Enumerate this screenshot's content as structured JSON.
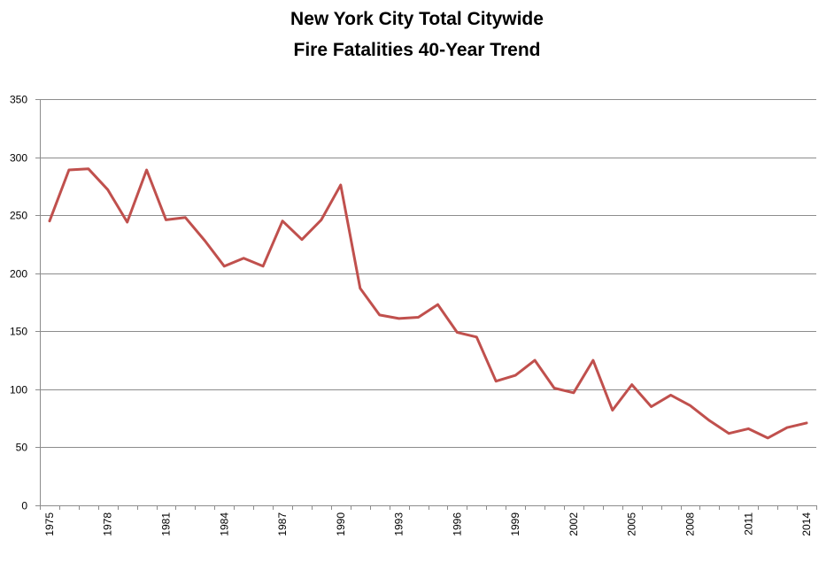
{
  "chart_data": {
    "type": "line",
    "title_line1": "New York City Total Citywide",
    "title_line2": "Fire Fatalities 40-Year Trend",
    "xlabel": "",
    "ylabel": "",
    "ylim": [
      0,
      350
    ],
    "yticks": [
      0,
      50,
      100,
      150,
      200,
      250,
      300,
      350
    ],
    "grid": true,
    "line_color": "#c0504d",
    "grid_color": "#8c8c8c",
    "x": [
      1975,
      1976,
      1977,
      1978,
      1979,
      1980,
      1981,
      1982,
      1983,
      1984,
      1985,
      1986,
      1987,
      1988,
      1989,
      1990,
      1991,
      1992,
      1993,
      1994,
      1995,
      1996,
      1997,
      1998,
      1999,
      2000,
      2001,
      2002,
      2003,
      2004,
      2005,
      2006,
      2007,
      2008,
      2009,
      2010,
      2011,
      2012,
      2013,
      2014
    ],
    "x_tick_labels": [
      "1975",
      "1978",
      "1981",
      "1984",
      "1987",
      "1990",
      "1993",
      "1996",
      "1999",
      "2002",
      "2005",
      "2008",
      "2011",
      "2014"
    ],
    "series": [
      {
        "name": "Fire Fatalities",
        "values": [
          245,
          289,
          290,
          272,
          244,
          289,
          246,
          248,
          228,
          206,
          213,
          206,
          245,
          229,
          246,
          276,
          187,
          164,
          161,
          162,
          173,
          149,
          145,
          107,
          112,
          125,
          101,
          97,
          125,
          82,
          104,
          85,
          95,
          86,
          73,
          62,
          66,
          58,
          67,
          71
        ]
      }
    ]
  }
}
